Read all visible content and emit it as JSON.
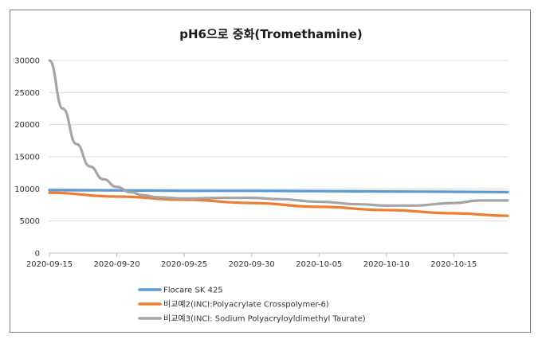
{
  "chart_data": {
    "type": "line",
    "title": "pH6으로 중화(Tromethamine)",
    "xlabel": "",
    "ylabel": "",
    "ylim": [
      0,
      30000
    ],
    "yticks": [
      "0",
      "5000",
      "10000",
      "15000",
      "20000",
      "25000",
      "30000"
    ],
    "xlim": [
      "2020-09-15",
      "2020-10-19"
    ],
    "xticks": [
      "2020-09-15",
      "2020-09-20",
      "2020-09-25",
      "2020-09-30",
      "2020-10-05",
      "2020-10-10",
      "2020-10-15"
    ],
    "grid": "horizontal",
    "legend_position": "bottom",
    "series": [
      {
        "name": "Flocare SK 425",
        "color": "#5b9bd5",
        "x": [
          "2020-09-15",
          "2020-09-20",
          "2020-09-25",
          "2020-09-30",
          "2020-10-05",
          "2020-10-10",
          "2020-10-15",
          "2020-10-19"
        ],
        "values": [
          9800,
          9750,
          9700,
          9700,
          9650,
          9600,
          9550,
          9500
        ]
      },
      {
        "name": "비교예2(INCI:Polyacrylate Crosspolymer-6)",
        "color": "#ed7d31",
        "x": [
          "2020-09-15",
          "2020-09-20",
          "2020-09-25",
          "2020-09-30",
          "2020-10-05",
          "2020-10-10",
          "2020-10-15",
          "2020-10-19"
        ],
        "values": [
          9400,
          8800,
          8300,
          7800,
          7200,
          6700,
          6200,
          5800
        ]
      },
      {
        "name": "비교예3(INCI: Sodium Polyacryloyldimethyl Taurate)",
        "color": "#a5a5a5",
        "x": [
          "2020-09-15",
          "2020-09-16",
          "2020-09-17",
          "2020-09-18",
          "2020-09-19",
          "2020-09-20",
          "2020-09-21",
          "2020-09-22",
          "2020-09-23",
          "2020-09-25",
          "2020-09-28",
          "2020-09-30",
          "2020-10-02",
          "2020-10-05",
          "2020-10-08",
          "2020-10-10",
          "2020-10-12",
          "2020-10-15",
          "2020-10-17",
          "2020-10-19"
        ],
        "values": [
          30000,
          22500,
          17000,
          13500,
          11500,
          10300,
          9500,
          9000,
          8700,
          8500,
          8600,
          8600,
          8400,
          8000,
          7600,
          7400,
          7400,
          7800,
          8200,
          8200
        ]
      }
    ]
  }
}
